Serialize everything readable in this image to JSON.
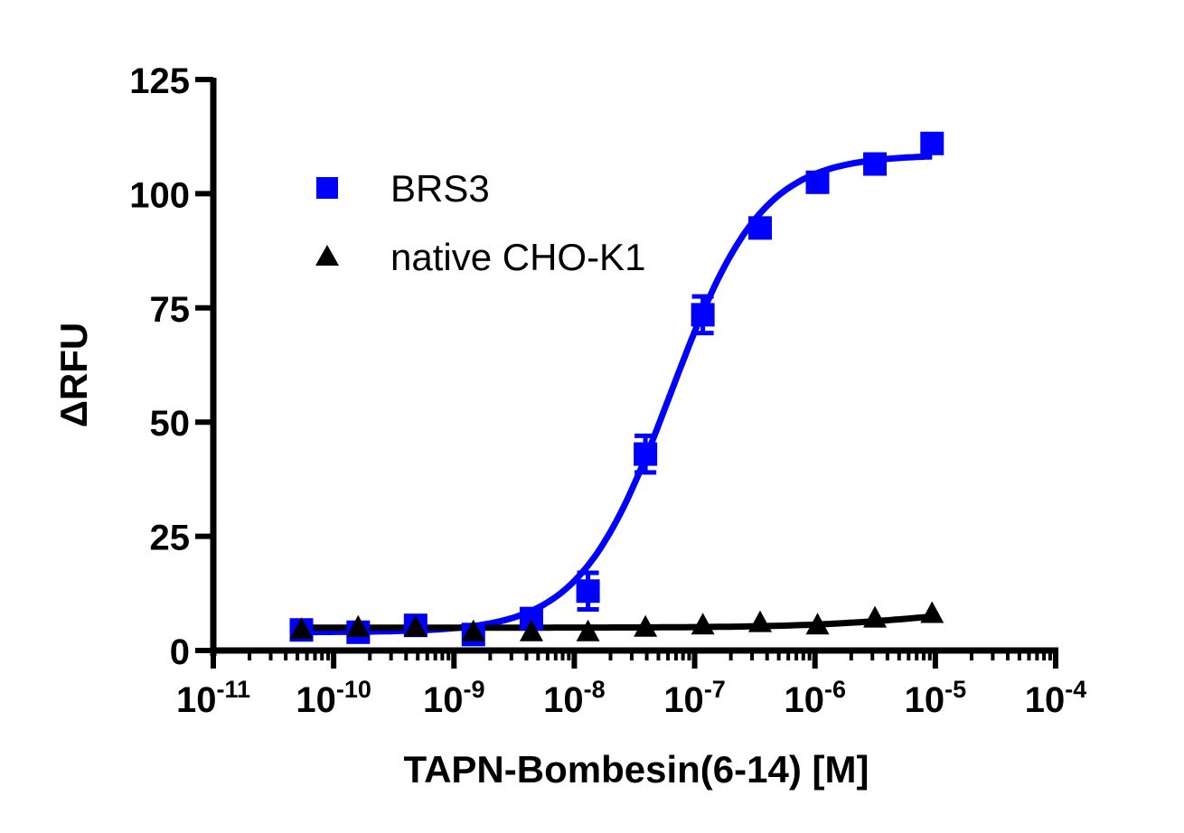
{
  "chart_data": {
    "type": "scatter",
    "title": "",
    "xlabel": "TAPN-Bombesin(6-14) [M]",
    "ylabel": "ΔRFU",
    "xscale": "log",
    "xlim": [
      1e-11,
      0.0001
    ],
    "ylim": [
      0,
      125
    ],
    "yticks": [
      0,
      25,
      50,
      75,
      100,
      125
    ],
    "xticks": [
      "10^-11",
      "10^-10",
      "10^-9",
      "10^-8",
      "10^-7",
      "10^-6",
      "10^-5",
      "10^-4"
    ],
    "xtick_exponents": [
      -11,
      -10,
      -9,
      -8,
      -7,
      -6,
      -5,
      -4
    ],
    "grid": false,
    "legend_position": "upper-left",
    "x": [
      5.4e-11,
      1.6e-10,
      4.8e-10,
      1.45e-09,
      4.4e-09,
      1.3e-08,
      3.9e-08,
      1.17e-07,
      3.5e-07,
      1.05e-06,
      3.15e-06,
      9.4e-06
    ],
    "series": [
      {
        "name": "BRS3",
        "color": "#0000ff",
        "marker": "square",
        "values": [
          4.5,
          4,
          5.5,
          3.5,
          7,
          13,
          43,
          73.5,
          92.5,
          102.5,
          106.5,
          111
        ],
        "errors": [
          1,
          1,
          1,
          1.5,
          1,
          4,
          4,
          4,
          1,
          1,
          1,
          1
        ],
        "fit": {
          "bottom": 4,
          "top": 108.5,
          "logEC50": -7.2,
          "hill": 1.15
        }
      },
      {
        "name": "native CHO-K1",
        "color": "#000000",
        "marker": "triangle",
        "values": [
          4.5,
          5,
          5,
          4,
          4,
          4,
          5,
          5.5,
          6,
          5.5,
          7,
          8
        ],
        "fit": {
          "bottom": 5,
          "top": 10,
          "logEC50": -5.0,
          "hill": 0.8
        }
      }
    ]
  }
}
